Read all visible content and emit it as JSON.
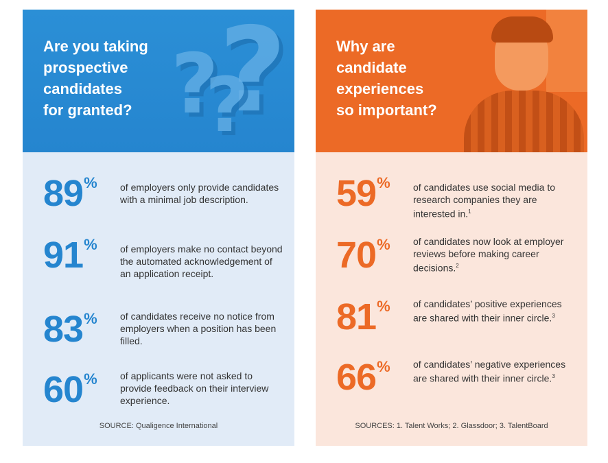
{
  "left_panel": {
    "title": "Are you taking\nprospective\ncandidates\nfor granted?",
    "stats": [
      {
        "number": "89",
        "percent": "%",
        "text": "of employers only provide candidates with a minimal job description."
      },
      {
        "number": "91",
        "percent": "%",
        "text": "of employers make no contact beyond the automated acknowledgement of an application receipt."
      },
      {
        "number": "83",
        "percent": "%",
        "text": "of candidates receive no notice from employers when a position has been filled."
      },
      {
        "number": "60",
        "percent": "%",
        "text": "of applicants were not asked to provide feedback on their interview experience."
      }
    ],
    "source": "SOURCE: Qualigence International",
    "accent_color": "#2585cf"
  },
  "right_panel": {
    "title": "Why are\ncandidate\nexperiences\nso important?",
    "stats": [
      {
        "number": "59",
        "percent": "%",
        "text": "of candidates use social media to research companies they are interested in.",
        "ref": "1"
      },
      {
        "number": "70",
        "percent": "%",
        "text": "of candidates now look at employer reviews before making career decisions.",
        "ref": "2"
      },
      {
        "number": "81",
        "percent": "%",
        "text": "of candidates’ positive experiences are shared with their inner circle.",
        "ref": "3"
      },
      {
        "number": "66",
        "percent": "%",
        "text": "of candidates’ negative experiences are shared with their inner circle.",
        "ref": "3"
      }
    ],
    "source": "SOURCES: 1. Talent Works; 2. Glassdoor; 3. TalentBoard",
    "accent_color": "#ec6a26"
  }
}
